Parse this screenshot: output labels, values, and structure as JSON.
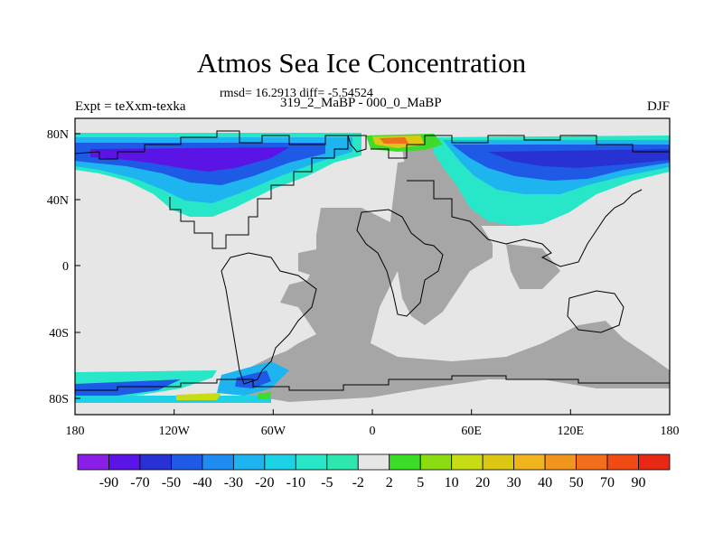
{
  "title": "Atmos Sea Ice Concentration",
  "stats": "rmsd= 16.2913 diff= -5.54524",
  "experiment": "Expt = teXxm-texka",
  "subtitle": "319_2_MaBP - 000_0_MaBP",
  "season": "DJF",
  "map": {
    "x_ticks": [
      "180",
      "120W",
      "60W",
      "0",
      "60E",
      "120E",
      "180"
    ],
    "y_ticks": [
      "80N",
      "40N",
      "0",
      "40S",
      "80S"
    ],
    "colors": {
      "land": "#a6a6a6",
      "ocean": "#e6e6e6",
      "coast": "#000000"
    }
  },
  "colorbar": {
    "labels": [
      "-90",
      "-70",
      "-50",
      "-40",
      "-30",
      "-20",
      "-10",
      "-5",
      "-2",
      "2",
      "5",
      "10",
      "20",
      "30",
      "40",
      "50",
      "70",
      "90"
    ],
    "colors": [
      "#8a1ee6",
      "#5a14e6",
      "#2832d2",
      "#1e5ae6",
      "#1e8cf0",
      "#1eb4f0",
      "#1ed2e6",
      "#28e6c8",
      "#2ee6b0",
      "#e6e6e6",
      "#3cdc28",
      "#8cdc14",
      "#c8dc14",
      "#dcc814",
      "#f0b41e",
      "#f0961e",
      "#f06e1e",
      "#f04b14",
      "#e62814"
    ]
  }
}
